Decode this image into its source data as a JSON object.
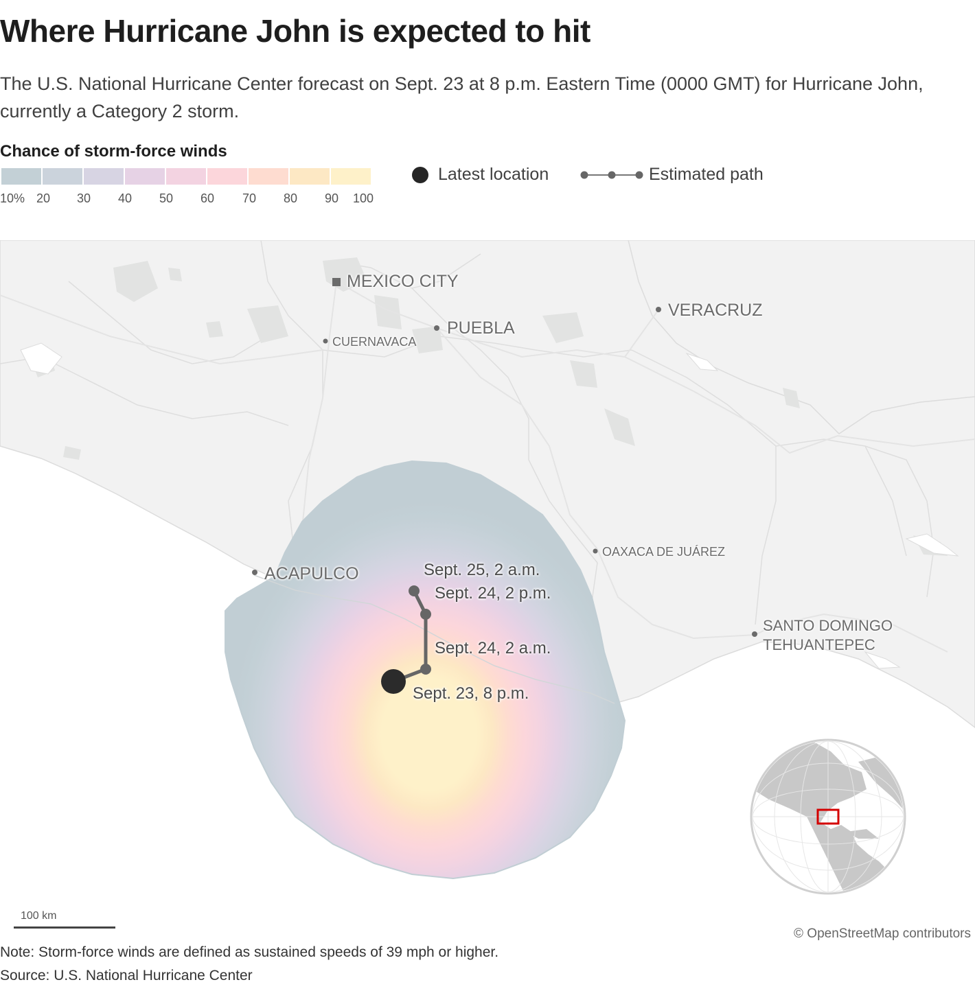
{
  "title": "Where Hurricane John is expected to hit",
  "subtitle": "The U.S. National Hurricane Center forecast on Sept. 23 at 8 p.m. Eastern Time (0000 GMT) for Hurricane John, currently a Category 2 storm.",
  "legend": {
    "title": "Chance of storm-force winds",
    "colors": [
      "#c3d0d6",
      "#cbd3dc",
      "#d7d4e3",
      "#e6d2e5",
      "#f3d3e1",
      "#fcd6db",
      "#fedcd0",
      "#fde8c4",
      "#fef1c9"
    ],
    "ticks": [
      "10%",
      "20",
      "30",
      "40",
      "50",
      "60",
      "70",
      "80",
      "90",
      "100"
    ],
    "latest_location": "Latest location",
    "estimated_path": "Estimated path"
  },
  "map": {
    "cities": {
      "mexico_city": "MEXICO CITY",
      "puebla": "PUEBLA",
      "cuernavaca": "CUERNAVACA",
      "veracruz": "VERACRUZ",
      "acapulco": "ACAPULCO",
      "oaxaca": "OAXACA DE JUÁREZ",
      "santo_domingo_1": "SANTO DOMINGO",
      "santo_domingo_2": "TEHUANTEPEC"
    },
    "path_points": [
      {
        "label": "Sept. 23, 8 p.m.",
        "latest": true
      },
      {
        "label": "Sept. 24, 2 a.m."
      },
      {
        "label": "Sept. 24, 2 p.m."
      },
      {
        "label": "Sept. 25, 2 a.m."
      }
    ],
    "scale_label": "100 km",
    "attribution": "© OpenStreetMap contributors"
  },
  "note": "Note: Storm-force winds are defined as sustained speeds of 39 mph or higher.",
  "source": "Source: U.S. National Hurricane Center"
}
